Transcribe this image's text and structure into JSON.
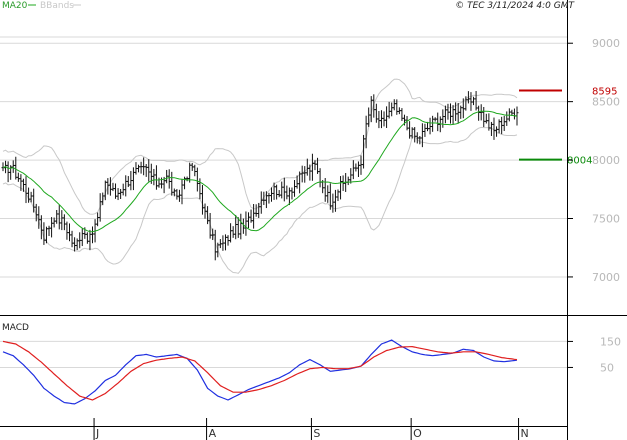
{
  "header": {
    "ma_label": "MA20",
    "bbands_label": "BBands",
    "copyright": "© TEC 3/11/2024 4:0 GMT"
  },
  "colors": {
    "price_bars": "#111111",
    "ma": "#1fa81f",
    "bbands": "#c8c8c8",
    "macd": "#1f2fe0",
    "signal": "#e01f1f",
    "resistance": "#c00000",
    "support": "#0a8a0a",
    "grid": "#d9d9d9"
  },
  "chart_data": [
    {
      "type": "ohlc",
      "name": "price",
      "ylim": [
        6700,
        9250
      ],
      "y_ticks": [
        7000,
        7500,
        8000,
        8500,
        9000
      ],
      "y_tick_labels": [
        "7000",
        "7500",
        "8000",
        "8500",
        "9000"
      ],
      "x_tick_labels": [
        {
          "label": "J",
          "bar": 36
        },
        {
          "label": "A",
          "bar": 80
        },
        {
          "label": "S",
          "bar": 121
        },
        {
          "label": "O",
          "bar": 160
        },
        {
          "label": "N",
          "bar": 202
        }
      ],
      "indicators": [
        "MA20",
        "BBands"
      ],
      "levels": [
        {
          "label": "8595",
          "value": 8595,
          "kind": "resistance"
        },
        {
          "label": "8004",
          "value": 8004,
          "kind": "support"
        }
      ],
      "close_anchors": [
        [
          0,
          7900
        ],
        [
          3,
          7950
        ],
        [
          7,
          7820
        ],
        [
          10,
          7700
        ],
        [
          13,
          7560
        ],
        [
          16,
          7350
        ],
        [
          20,
          7520
        ],
        [
          24,
          7460
        ],
        [
          28,
          7250
        ],
        [
          31,
          7400
        ],
        [
          34,
          7320
        ],
        [
          37,
          7500
        ],
        [
          40,
          7820
        ],
        [
          44,
          7700
        ],
        [
          48,
          7800
        ],
        [
          52,
          7900
        ],
        [
          56,
          7920
        ],
        [
          60,
          7800
        ],
        [
          64,
          7850
        ],
        [
          68,
          7650
        ],
        [
          71,
          7850
        ],
        [
          74,
          7950
        ],
        [
          77,
          7720
        ],
        [
          80,
          7450
        ],
        [
          83,
          7250
        ],
        [
          86,
          7280
        ],
        [
          90,
          7400
        ],
        [
          94,
          7420
        ],
        [
          98,
          7550
        ],
        [
          102,
          7700
        ],
        [
          106,
          7750
        ],
        [
          110,
          7720
        ],
        [
          114,
          7780
        ],
        [
          118,
          7900
        ],
        [
          122,
          7950
        ],
        [
          125,
          7780
        ],
        [
          128,
          7650
        ],
        [
          131,
          7750
        ],
        [
          134,
          7820
        ],
        [
          137,
          7900
        ],
        [
          140,
          8000
        ],
        [
          142,
          8300
        ],
        [
          144,
          8480
        ],
        [
          147,
          8300
        ],
        [
          150,
          8380
        ],
        [
          153,
          8450
        ],
        [
          156,
          8350
        ],
        [
          159,
          8250
        ],
        [
          162,
          8180
        ],
        [
          165,
          8250
        ],
        [
          168,
          8320
        ],
        [
          172,
          8380
        ],
        [
          176,
          8420
        ],
        [
          180,
          8460
        ],
        [
          183,
          8500
        ],
        [
          186,
          8440
        ],
        [
          189,
          8320
        ],
        [
          192,
          8250
        ],
        [
          195,
          8330
        ],
        [
          198,
          8380
        ],
        [
          201,
          8440
        ]
      ]
    },
    {
      "type": "line",
      "name": "MACD",
      "title": "MACD",
      "y_ticks": [
        50,
        150
      ],
      "y_tick_labels": [
        "50",
        "150"
      ],
      "ylim": [
        -175,
        240
      ],
      "series": [
        {
          "name": "MACD",
          "points": [
            [
              0,
              110
            ],
            [
              4,
              95
            ],
            [
              8,
              60
            ],
            [
              12,
              20
            ],
            [
              16,
              -30
            ],
            [
              20,
              -60
            ],
            [
              24,
              -85
            ],
            [
              28,
              -90
            ],
            [
              32,
              -70
            ],
            [
              36,
              -40
            ],
            [
              40,
              0
            ],
            [
              44,
              20
            ],
            [
              48,
              60
            ],
            [
              52,
              95
            ],
            [
              56,
              100
            ],
            [
              60,
              90
            ],
            [
              64,
              95
            ],
            [
              68,
              100
            ],
            [
              72,
              85
            ],
            [
              76,
              40
            ],
            [
              80,
              -30
            ],
            [
              84,
              -60
            ],
            [
              88,
              -75
            ],
            [
              92,
              -55
            ],
            [
              96,
              -35
            ],
            [
              100,
              -20
            ],
            [
              104,
              -5
            ],
            [
              108,
              10
            ],
            [
              112,
              30
            ],
            [
              116,
              60
            ],
            [
              120,
              80
            ],
            [
              124,
              60
            ],
            [
              128,
              35
            ],
            [
              132,
              40
            ],
            [
              136,
              45
            ],
            [
              140,
              55
            ],
            [
              144,
              100
            ],
            [
              148,
              140
            ],
            [
              152,
              155
            ],
            [
              156,
              130
            ],
            [
              160,
              110
            ],
            [
              164,
              100
            ],
            [
              168,
              95
            ],
            [
              172,
              100
            ],
            [
              176,
              105
            ],
            [
              180,
              120
            ],
            [
              184,
              115
            ],
            [
              188,
              90
            ],
            [
              192,
              75
            ],
            [
              196,
              72
            ],
            [
              201,
              78
            ]
          ]
        },
        {
          "name": "Signal",
          "points": [
            [
              0,
              150
            ],
            [
              5,
              140
            ],
            [
              10,
              110
            ],
            [
              15,
              70
            ],
            [
              20,
              25
            ],
            [
              25,
              -20
            ],
            [
              30,
              -60
            ],
            [
              35,
              -75
            ],
            [
              40,
              -50
            ],
            [
              45,
              -10
            ],
            [
              50,
              35
            ],
            [
              55,
              65
            ],
            [
              60,
              78
            ],
            [
              65,
              85
            ],
            [
              70,
              90
            ],
            [
              75,
              75
            ],
            [
              80,
              30
            ],
            [
              85,
              -20
            ],
            [
              90,
              -45
            ],
            [
              95,
              -45
            ],
            [
              100,
              -35
            ],
            [
              105,
              -20
            ],
            [
              110,
              0
            ],
            [
              115,
              25
            ],
            [
              120,
              45
            ],
            [
              125,
              50
            ],
            [
              130,
              45
            ],
            [
              135,
              45
            ],
            [
              140,
              55
            ],
            [
              145,
              90
            ],
            [
              150,
              115
            ],
            [
              155,
              128
            ],
            [
              160,
              130
            ],
            [
              165,
              120
            ],
            [
              170,
              110
            ],
            [
              175,
              105
            ],
            [
              180,
              110
            ],
            [
              185,
              110
            ],
            [
              190,
              100
            ],
            [
              195,
              88
            ],
            [
              201,
              80
            ]
          ]
        }
      ]
    }
  ]
}
